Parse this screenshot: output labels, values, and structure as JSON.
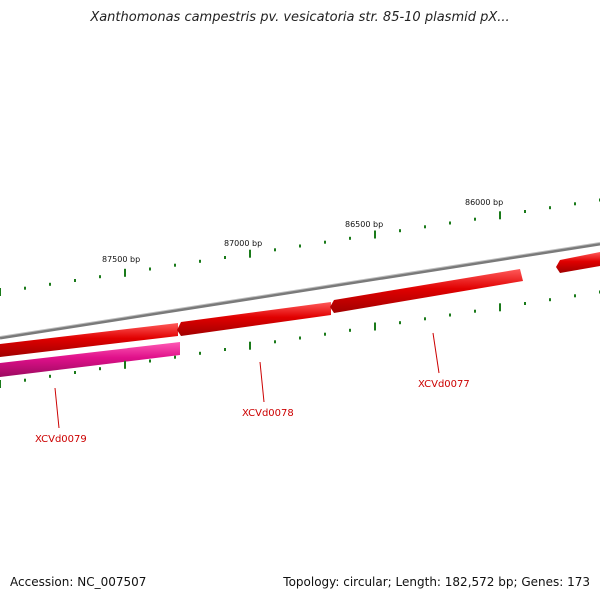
{
  "title": "Xanthomonas campestris pv. vesicatoria str. 85-10 plasmid pX...",
  "footer": {
    "accession": "Accession: NC_007507",
    "summary": "Topology: circular; Length: 182,572 bp; Genes: 173"
  },
  "ruler_labels": [
    "87500 bp",
    "87000 bp",
    "86500 bp",
    "86000 bp"
  ],
  "genes": [
    {
      "name": "XCVd0079",
      "strand": "reverse"
    },
    {
      "name": "XCVd0078",
      "strand": "forward"
    },
    {
      "name": "XCVd0077",
      "strand": "forward"
    }
  ],
  "colors": {
    "backbone": "#808080",
    "forward_gene": "#e00000",
    "reverse_gene": "#e0108a",
    "ticks": "#1a7a1a",
    "gene_label": "#cc0000"
  }
}
